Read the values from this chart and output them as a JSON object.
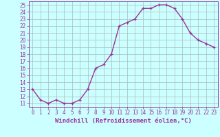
{
  "x": [
    0,
    1,
    2,
    3,
    4,
    5,
    6,
    7,
    8,
    9,
    10,
    11,
    12,
    13,
    14,
    15,
    16,
    17,
    18,
    19,
    20,
    21,
    22,
    23
  ],
  "y": [
    13,
    11.5,
    11,
    11.5,
    11,
    11,
    11.5,
    13,
    16,
    16.5,
    18,
    22,
    22.5,
    23,
    24.5,
    24.5,
    25,
    25,
    24.5,
    23,
    21,
    20,
    19.5,
    19
  ],
  "line_color": "#993399",
  "marker": "+",
  "marker_size": 3,
  "bg_color": "#ccffff",
  "grid_color": "#aabbbb",
  "xlabel": "Windchill (Refroidissement éolien,°C)",
  "xlabel_fontsize": 6.5,
  "yticks": [
    11,
    12,
    13,
    14,
    15,
    16,
    17,
    18,
    19,
    20,
    21,
    22,
    23,
    24,
    25
  ],
  "xlim": [
    -0.5,
    23.5
  ],
  "ylim": [
    10.5,
    25.5
  ],
  "tick_fontsize": 5.5,
  "linewidth": 1.0
}
